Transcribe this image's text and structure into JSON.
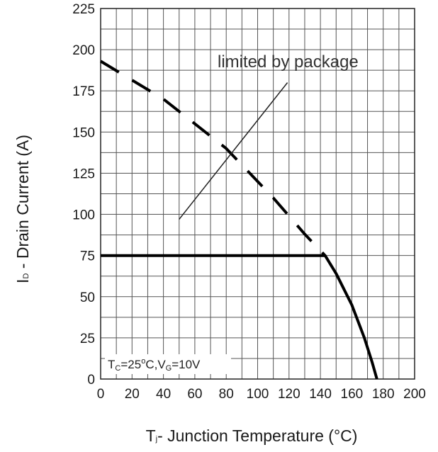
{
  "chart_data": {
    "type": "line",
    "title": "",
    "xlabel": "Tj - Junction Temperature (°C)",
    "ylabel": "ID - Drain Current (A)",
    "xlabel_parts": {
      "main": "T",
      "sub": "j",
      "rest": "- Junction Temperature (°C)"
    },
    "ylabel_parts": {
      "main": "I",
      "sub": "D",
      "rest": " - Drain Current (A)"
    },
    "xlim": [
      0,
      200
    ],
    "ylim": [
      0,
      225
    ],
    "x_ticks": [
      0,
      20,
      40,
      60,
      80,
      100,
      120,
      140,
      160,
      180,
      200
    ],
    "y_ticks": [
      0,
      25,
      50,
      75,
      100,
      125,
      150,
      175,
      200,
      225
    ],
    "grid": true,
    "minor_grid_x_step": 10,
    "minor_grid_y_step": 12.5,
    "series": [
      {
        "style": "dashed",
        "x": [
          0,
          40,
          80,
          110,
          130,
          143
        ],
        "y": [
          193,
          170,
          140,
          110,
          88,
          75
        ]
      },
      {
        "style": "solid",
        "x": [
          0,
          143,
          150,
          160,
          168,
          173,
          176
        ],
        "y": [
          75,
          75,
          64,
          45,
          25,
          10,
          0
        ]
      }
    ],
    "annotations": [
      {
        "text": "limited by package",
        "arrow_from": [
          50,
          97
        ],
        "arrow_to": [
          119,
          180
        ]
      }
    ],
    "condition_parts": {
      "t": "T",
      "t_sub": "C",
      "eq1": "=25",
      "deg": "o",
      "c": "C,V",
      "v_sub": "G",
      "eq2": "=10V"
    }
  }
}
